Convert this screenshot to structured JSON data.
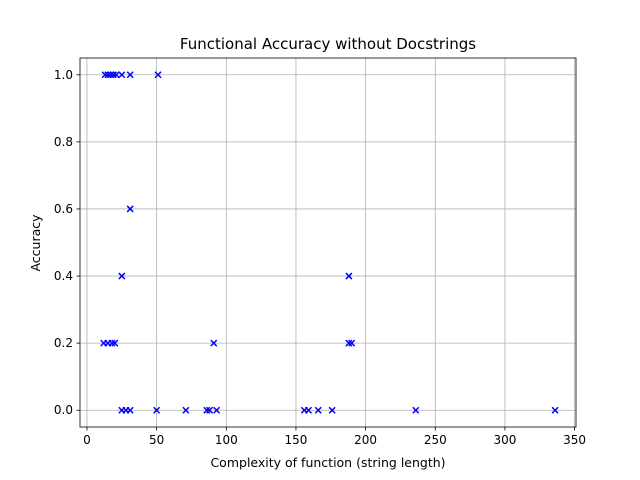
{
  "chart_data": {
    "type": "scatter",
    "title": "Functional Accuracy without Docstrings",
    "xlabel": "Complexity of function (string length)",
    "ylabel": "Accuracy",
    "xlim": [
      -5,
      351
    ],
    "ylim": [
      -0.05,
      1.05
    ],
    "xticks": [
      0,
      50,
      100,
      150,
      200,
      250,
      300,
      350
    ],
    "yticks": [
      0.0,
      0.2,
      0.4,
      0.6,
      0.8,
      1.0
    ],
    "ytick_labels": [
      "0.0",
      "0.2",
      "0.4",
      "0.6",
      "0.8",
      "1.0"
    ],
    "grid": true,
    "marker": "x",
    "marker_color": "#0000ff",
    "grid_color": "#b0b0b0",
    "points": [
      {
        "x": 13,
        "y": 1.0
      },
      {
        "x": 15,
        "y": 1.0
      },
      {
        "x": 17,
        "y": 1.0
      },
      {
        "x": 19,
        "y": 1.0
      },
      {
        "x": 21,
        "y": 1.0
      },
      {
        "x": 25,
        "y": 1.0
      },
      {
        "x": 31,
        "y": 1.0
      },
      {
        "x": 51,
        "y": 1.0
      },
      {
        "x": 31,
        "y": 0.6
      },
      {
        "x": 25,
        "y": 0.4
      },
      {
        "x": 188,
        "y": 0.4
      },
      {
        "x": 12,
        "y": 0.2
      },
      {
        "x": 15,
        "y": 0.2
      },
      {
        "x": 18,
        "y": 0.2
      },
      {
        "x": 20,
        "y": 0.2
      },
      {
        "x": 91,
        "y": 0.2
      },
      {
        "x": 188,
        "y": 0.2
      },
      {
        "x": 190,
        "y": 0.2
      },
      {
        "x": 25,
        "y": 0.0
      },
      {
        "x": 28,
        "y": 0.0
      },
      {
        "x": 31,
        "y": 0.0
      },
      {
        "x": 50,
        "y": 0.0
      },
      {
        "x": 71,
        "y": 0.0
      },
      {
        "x": 86,
        "y": 0.0
      },
      {
        "x": 88,
        "y": 0.0
      },
      {
        "x": 93,
        "y": 0.0
      },
      {
        "x": 156,
        "y": 0.0
      },
      {
        "x": 159,
        "y": 0.0
      },
      {
        "x": 166,
        "y": 0.0
      },
      {
        "x": 176,
        "y": 0.0
      },
      {
        "x": 236,
        "y": 0.0
      },
      {
        "x": 336,
        "y": 0.0
      }
    ]
  }
}
